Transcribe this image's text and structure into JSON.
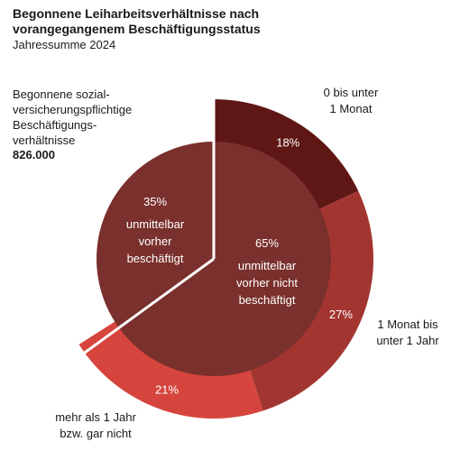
{
  "header": {
    "title": "Begonnene Leiharbeitsverhältnisse nach vorangegangenem Beschäftigungsstatus",
    "subtitle": "Jahressumme 2024"
  },
  "total": {
    "label": "Begonnene sozial-versicherungspflichtige Beschäftigungs-verhältnisse",
    "label_lines": [
      "Begonnene sozial-",
      "versicherungspflichtige",
      "Beschäftigungs-",
      "verhältnisse"
    ],
    "value": "826.000"
  },
  "chart_data": {
    "type": "pie",
    "title": "Begonnene Leiharbeitsverhältnisse nach vorangegangenem Beschäftigungsstatus",
    "subtitle": "Jahressumme 2024",
    "inner": [
      {
        "label": "unmittelbar vorher beschäftigt",
        "label_lines": [
          "unmittelbar",
          "vorher",
          "beschäftigt"
        ],
        "value": 35,
        "value_label": "35%",
        "color": "#7a302c"
      },
      {
        "label": "unmittelbar vorher nicht beschäftigt",
        "label_lines": [
          "unmittelbar",
          "vorher nicht",
          "beschäftigt"
        ],
        "value": 65,
        "value_label": "65%",
        "color": "#7a302c"
      }
    ],
    "outer": [
      {
        "label": "0 bis unter 1 Monat",
        "label_lines": [
          "0 bis unter",
          "1 Monat"
        ],
        "value": 18,
        "value_label": "18%",
        "color": "#5e1715"
      },
      {
        "label": "1 Monat bis unter 1 Jahr",
        "label_lines": [
          "1 Monat bis",
          "unter 1 Jahr"
        ],
        "value": 27,
        "value_label": "27%",
        "color": "#a33530"
      },
      {
        "label": "mehr als 1 Jahr bzw. gar nicht",
        "label_lines": [
          "mehr als 1 Jahr",
          "bzw. gar nicht"
        ],
        "value": 21,
        "value_label": "21%",
        "color": "#d6453d"
      }
    ]
  }
}
